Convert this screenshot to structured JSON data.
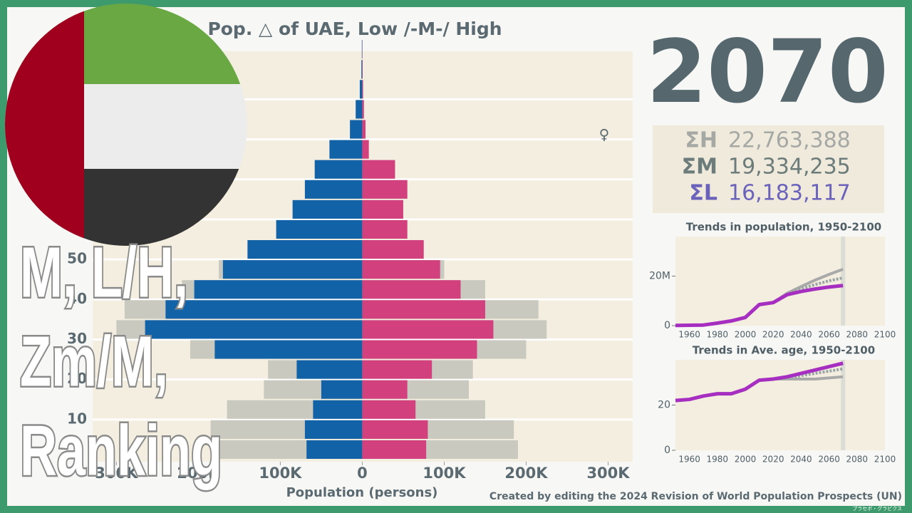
{
  "year": "2070",
  "female_symbol": "♀",
  "totals": [
    {
      "label": "ΣH",
      "value": "22,763,388",
      "color": "#a6a8a5"
    },
    {
      "label": "ΣM",
      "value": "19,334,235",
      "color": "#6c7c7b"
    },
    {
      "label": "ΣL",
      "value": "16,183,117",
      "color": "#6a62bb"
    }
  ],
  "overlay": [
    "M, L/H,",
    "Zm/M,",
    "Ranking"
  ],
  "credit": "Created by editing the 2024 Revision of World Population Prospects (UN)",
  "watermark": "プラセボ・グラビクス",
  "chart_data": [
    {
      "type": "pyramid",
      "title": "Pop. △ of UAE, Low /-M-/ High",
      "x_label": "Population (persons)",
      "ages": [
        0,
        5,
        10,
        15,
        20,
        25,
        30,
        35,
        40,
        45,
        50,
        55,
        60,
        65,
        70,
        75,
        80,
        85,
        90,
        95,
        100
      ],
      "series": [
        {
          "name": "Male High",
          "side": "left",
          "color": "#c9c9c0",
          "values": [
            175000,
            185000,
            165000,
            120000,
            115000,
            210000,
            300000,
            290000,
            220000,
            175000,
            140000,
            105000,
            85000,
            70000,
            58000,
            40000,
            15000,
            8000,
            3000,
            1000,
            500
          ]
        },
        {
          "name": "Female High",
          "side": "right",
          "color": "#c9c9c0",
          "values": [
            190000,
            185000,
            150000,
            130000,
            135000,
            200000,
            225000,
            215000,
            150000,
            100000,
            75000,
            55000,
            50000,
            55000,
            40000,
            8000,
            4000,
            2000,
            1000,
            500,
            200
          ]
        },
        {
          "name": "Male",
          "side": "left",
          "color": "#1262a8",
          "values": [
            68000,
            70000,
            60000,
            50000,
            80000,
            180000,
            265000,
            240000,
            205000,
            170000,
            140000,
            105000,
            85000,
            70000,
            58000,
            40000,
            15000,
            8000,
            3000,
            1000,
            500
          ]
        },
        {
          "name": "Female",
          "side": "right",
          "color": "#d2417e",
          "values": [
            78000,
            80000,
            65000,
            55000,
            85000,
            140000,
            160000,
            150000,
            120000,
            95000,
            75000,
            55000,
            50000,
            55000,
            40000,
            8000,
            4000,
            2000,
            1000,
            500,
            200
          ]
        }
      ],
      "xlim": [
        -329000,
        330000
      ],
      "xticks": [
        {
          "value": -300000,
          "label": "300K"
        },
        {
          "value": -200000,
          "label": "200K"
        },
        {
          "value": -100000,
          "label": "100K"
        },
        0,
        {
          "value": 100000,
          "label": "100K"
        },
        {
          "value": 200000,
          "label": "200K"
        },
        {
          "value": 300000,
          "label": "300K"
        }
      ],
      "ylim": [
        0,
        102
      ],
      "yticks": [
        10,
        20,
        30,
        40,
        50,
        60,
        70,
        80,
        90
      ],
      "grid": true
    },
    {
      "type": "line",
      "title": "Trends in population, 1950-2100",
      "x": [
        1950,
        1960,
        1970,
        1980,
        1990,
        2000,
        2010,
        2020,
        2030,
        2040,
        2050,
        2060,
        2070
      ],
      "series": [
        {
          "name": "High",
          "color": "#a9a9a9",
          "values": [
            null,
            null,
            null,
            null,
            null,
            null,
            null,
            9300000,
            13100000,
            15800000,
            18400000,
            20700000,
            22800000
          ]
        },
        {
          "name": "Medium",
          "color": "#9aa4a4",
          "dashed": true,
          "values": [
            null,
            null,
            null,
            null,
            null,
            null,
            null,
            9300000,
            12800000,
            14800000,
            16600000,
            18100000,
            19300000
          ]
        },
        {
          "name": "Low",
          "color": "#a62ec0",
          "values": [
            70000,
            130000,
            230000,
            1000000,
            1900000,
            3300000,
            8500000,
            9300000,
            12500000,
            13800000,
            14800000,
            15600000,
            16200000
          ]
        }
      ],
      "xlim": [
        1950,
        2100
      ],
      "xticks": [
        1960,
        1980,
        2000,
        2020,
        2040,
        2060,
        2080,
        2100
      ],
      "ylim": [
        0,
        36000000
      ],
      "yticks": [
        0,
        {
          "value": 20000000,
          "label": "20M"
        }
      ],
      "marker_year": 2070
    },
    {
      "type": "line",
      "title": "Trends in Ave. age, 1950-2100",
      "x": [
        1950,
        1960,
        1970,
        1980,
        1990,
        2000,
        2010,
        2020,
        2030,
        2040,
        2050,
        2060,
        2070
      ],
      "series": [
        {
          "name": "High",
          "color": "#a9a9a9",
          "values": [
            null,
            null,
            null,
            null,
            null,
            null,
            null,
            31.5,
            31.5,
            31.5,
            31.5,
            32,
            32.5
          ]
        },
        {
          "name": "Medium",
          "color": "#9aa4a4",
          "dashed": true,
          "values": [
            null,
            null,
            null,
            null,
            null,
            null,
            null,
            31.5,
            32,
            33,
            34,
            35,
            36
          ]
        },
        {
          "name": "Low",
          "color": "#a62ec0",
          "values": [
            22,
            22.5,
            24,
            25,
            25,
            27,
            31,
            31.5,
            32.5,
            34,
            35.5,
            37,
            38.5
          ]
        }
      ],
      "xlim": [
        1950,
        2100
      ],
      "xticks": [
        1960,
        1980,
        2000,
        2020,
        2040,
        2060,
        2080,
        2100
      ],
      "ylim": [
        0,
        40
      ],
      "yticks": [
        0,
        20
      ],
      "marker_year": 2070
    }
  ]
}
